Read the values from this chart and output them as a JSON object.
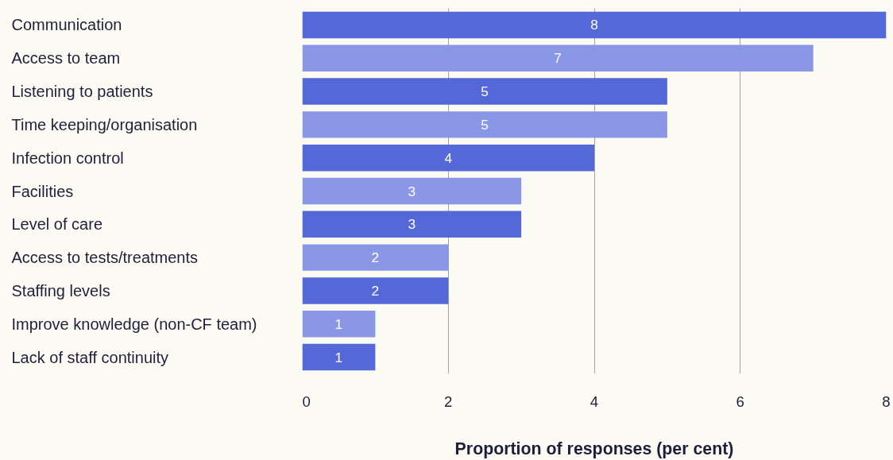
{
  "chart_data": {
    "type": "bar",
    "orientation": "horizontal",
    "xlabel": "Proportion of responses (per cent)",
    "categories": [
      "Communication",
      "Access to team",
      "Listening to patients",
      "Time keeping/organisation",
      "Infection control",
      "Facilities",
      "Level of care",
      "Access to tests/treatments",
      "Staffing levels",
      "Improve knowledge (non-CF team)",
      "Lack of staff continuity"
    ],
    "values": [
      8,
      7,
      5,
      5,
      4,
      3,
      3,
      2,
      2,
      1,
      1
    ],
    "colors": [
      "#5468d8",
      "#8a96e6",
      "#5468d8",
      "#8a96e6",
      "#5468d8",
      "#8a96e6",
      "#5468d8",
      "#8a96e6",
      "#5468d8",
      "#8a96e6",
      "#5468d8"
    ],
    "xlim": [
      0,
      8
    ],
    "xticks": [
      0,
      2,
      4,
      6,
      8
    ],
    "grid": "x",
    "data_labels": true
  }
}
